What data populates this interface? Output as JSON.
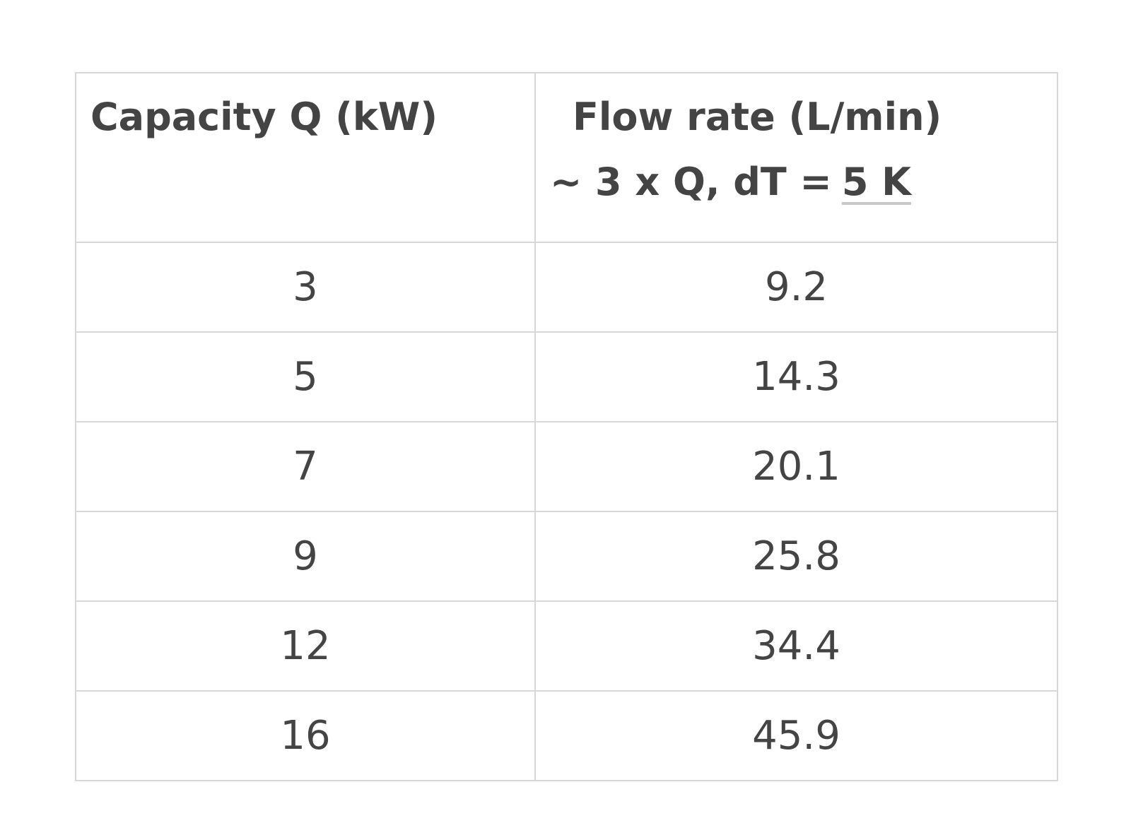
{
  "table": {
    "header": [
      {
        "title": "Capacity Q (kW)"
      },
      {
        "title": "Flow rate (L/min)",
        "formula": "~ 3 x Q, dT =",
        "link": "5 K"
      }
    ],
    "rows": [
      [
        3,
        9.2
      ],
      [
        5,
        14.3
      ],
      [
        7,
        20.1
      ],
      [
        9,
        25.8
      ],
      [
        12,
        34.4
      ],
      [
        16,
        45.9
      ]
    ]
  }
}
